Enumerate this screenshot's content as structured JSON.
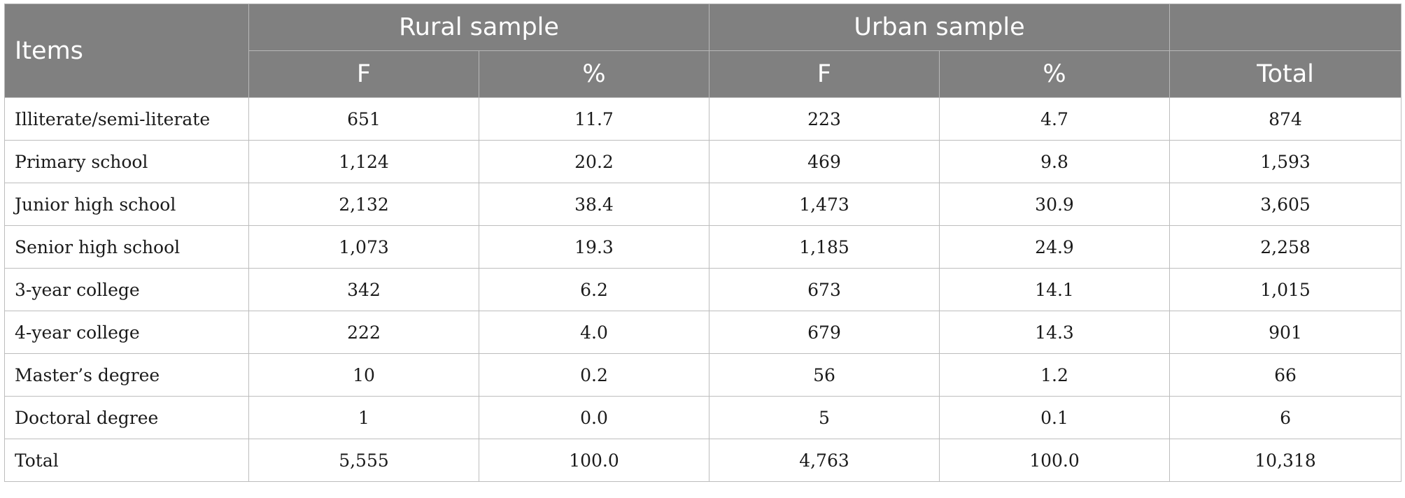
{
  "table": {
    "header": {
      "items": "Items",
      "rural": "Rural sample",
      "urban": "Urban sample",
      "sub": {
        "rural_f": "F",
        "rural_pct": "%",
        "urban_f": "F",
        "urban_pct": "%",
        "total": "Total"
      }
    },
    "rows": [
      {
        "item": "Illiterate/semi-literate",
        "rural_f": "651",
        "rural_pct": "11.7",
        "urban_f": "223",
        "urban_pct": "4.7",
        "total": "874"
      },
      {
        "item": "Primary school",
        "rural_f": "1,124",
        "rural_pct": "20.2",
        "urban_f": "469",
        "urban_pct": "9.8",
        "total": "1,593"
      },
      {
        "item": "Junior high school",
        "rural_f": "2,132",
        "rural_pct": "38.4",
        "urban_f": "1,473",
        "urban_pct": "30.9",
        "total": "3,605"
      },
      {
        "item": "Senior high school",
        "rural_f": "1,073",
        "rural_pct": "19.3",
        "urban_f": "1,185",
        "urban_pct": "24.9",
        "total": "2,258"
      },
      {
        "item": "3-year college",
        "rural_f": "342",
        "rural_pct": "6.2",
        "urban_f": "673",
        "urban_pct": "14.1",
        "total": "1,015"
      },
      {
        "item": "4-year college",
        "rural_f": "222",
        "rural_pct": "4.0",
        "urban_f": "679",
        "urban_pct": "14.3",
        "total": "901"
      },
      {
        "item": "Master’s degree",
        "rural_f": "10",
        "rural_pct": "0.2",
        "urban_f": "56",
        "urban_pct": "1.2",
        "total": "66"
      },
      {
        "item": "Doctoral degree",
        "rural_f": "1",
        "rural_pct": "0.0",
        "urban_f": "5",
        "urban_pct": "0.1",
        "total": "6"
      },
      {
        "item": "Total",
        "rural_f": "5,555",
        "rural_pct": "100.0",
        "urban_f": "4,763",
        "urban_pct": "100.0",
        "total": "10,318"
      }
    ],
    "colors": {
      "header_bg": "#808080",
      "header_text": "#ffffff",
      "grid": "#bdbdbd",
      "body_text": "#1a1a1a"
    }
  }
}
